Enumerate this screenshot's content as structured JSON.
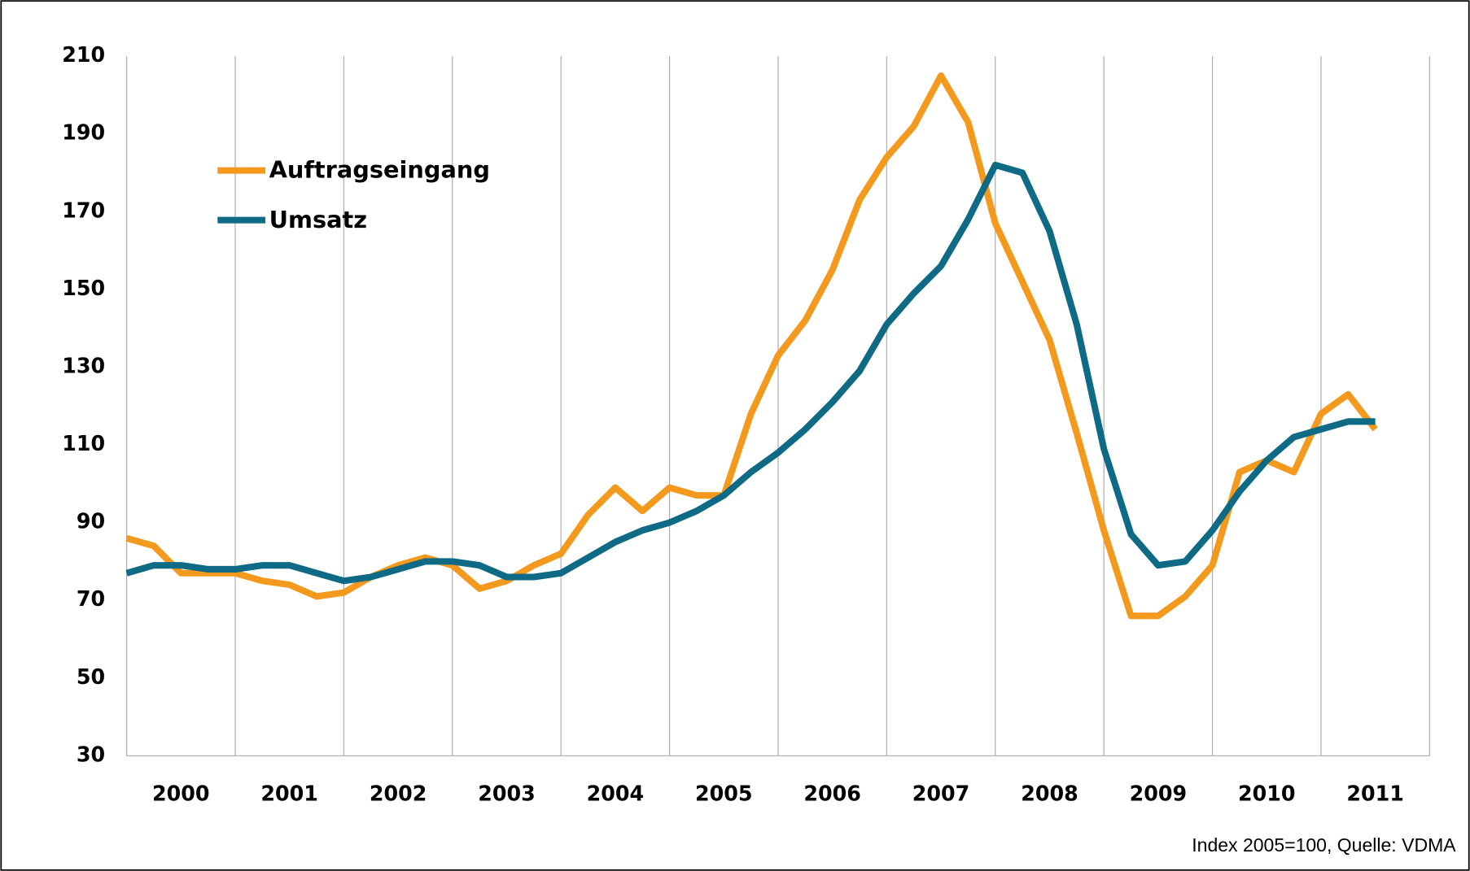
{
  "chart_data": {
    "type": "line",
    "categories": [
      null,
      null,
      "2000",
      null,
      null,
      null,
      "2001",
      null,
      null,
      null,
      "2002",
      null,
      null,
      null,
      "2003",
      null,
      null,
      null,
      "2004",
      null,
      null,
      null,
      "2005",
      null,
      null,
      null,
      "2006",
      null,
      null,
      null,
      "2007",
      null,
      null,
      null,
      "2008",
      null,
      null,
      null,
      "2009",
      null,
      null,
      null,
      "2010",
      null,
      null,
      null,
      "2011",
      null,
      null
    ],
    "series": [
      {
        "name": "Auftragseingang",
        "color": "#f39a1e",
        "values": [
          86,
          84,
          77,
          77,
          77,
          75,
          74,
          71,
          72,
          76,
          79,
          81,
          79,
          73,
          75,
          79,
          82,
          92,
          99,
          93,
          99,
          97,
          97,
          118,
          133,
          142,
          155,
          173,
          184,
          192,
          205,
          193,
          167,
          152,
          137,
          113,
          88,
          66,
          66,
          71,
          79,
          103,
          106,
          103,
          118,
          123,
          114,
          null,
          null
        ]
      },
      {
        "name": "Umsatz",
        "color": "#0e6a85",
        "values": [
          77,
          79,
          79,
          78,
          78,
          79,
          79,
          77,
          75,
          76,
          78,
          80,
          80,
          79,
          76,
          76,
          77,
          81,
          85,
          88,
          90,
          93,
          97,
          103,
          108,
          114,
          121,
          129,
          141,
          149,
          156,
          168,
          182,
          180,
          165,
          141,
          109,
          87,
          79,
          80,
          88,
          98,
          106,
          112,
          114,
          116,
          116,
          null,
          null
        ]
      }
    ],
    "ylim": [
      30,
      210
    ],
    "yticks": [
      30,
      50,
      70,
      90,
      110,
      130,
      150,
      170,
      190,
      210
    ],
    "grid": "vertical",
    "legend": "upper left",
    "annotation": "Index 2005=100,  Quelle: VDMA"
  }
}
